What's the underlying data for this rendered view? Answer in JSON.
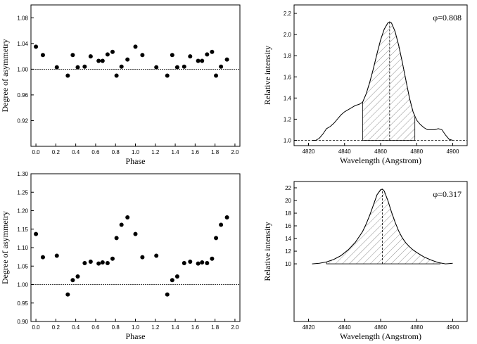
{
  "chart_data": [
    {
      "type": "scatter",
      "panel": "top-left",
      "xlabel": "Phase",
      "ylabel": "Degree of asymmetry",
      "xlim": [
        -0.05,
        2.05
      ],
      "ylim": [
        0.88,
        1.1
      ],
      "xticks": [
        "0.0",
        "0.2",
        "0.4",
        "0.6",
        "0.8",
        "1.0",
        "1.2",
        "1.4",
        "1.6",
        "1.8",
        "2.0"
      ],
      "yticks": [
        "0.92",
        "0.96",
        "1.00",
        "1.04",
        "1.08"
      ],
      "reference_line": 1.0,
      "x": [
        0.0,
        0.07,
        0.21,
        0.32,
        0.37,
        0.42,
        0.49,
        0.55,
        0.63,
        0.67,
        0.72,
        0.77,
        0.81,
        0.86,
        0.92,
        1.0,
        1.07,
        1.21,
        1.32,
        1.37,
        1.42,
        1.49,
        1.55,
        1.63,
        1.67,
        1.72,
        1.77,
        1.81,
        1.86,
        1.92
      ],
      "y": [
        1.035,
        1.022,
        1.003,
        0.99,
        1.022,
        1.003,
        1.004,
        1.02,
        1.013,
        1.013,
        1.023,
        1.027,
        0.99,
        1.004,
        1.015,
        1.035,
        1.022,
        1.003,
        0.99,
        1.022,
        1.003,
        1.004,
        1.02,
        1.013,
        1.013,
        1.023,
        1.027,
        0.99,
        1.004,
        1.015
      ]
    },
    {
      "type": "line",
      "panel": "top-right",
      "xlabel": "Wavelength (Angstrom)",
      "ylabel": "Relative intensity",
      "annotation": "φ=0.808",
      "xlim": [
        4812,
        4908
      ],
      "ylim": [
        0.95,
        2.28
      ],
      "xticks": [
        "4820",
        "4840",
        "4860",
        "4880",
        "4900"
      ],
      "yticks": [
        "1.0",
        "1.2",
        "1.4",
        "1.6",
        "1.8",
        "2.0",
        "2.2"
      ],
      "reference_line": 1.0,
      "hatched_range": [
        4850,
        4879
      ],
      "center_line": 4865,
      "x": [
        4822,
        4824,
        4826,
        4828,
        4830,
        4832,
        4834,
        4836,
        4838,
        4840,
        4842,
        4844,
        4846,
        4848,
        4850,
        4852,
        4854,
        4856,
        4858,
        4860,
        4862,
        4864,
        4865,
        4866,
        4868,
        4870,
        4872,
        4874,
        4876,
        4878,
        4880,
        4882,
        4884,
        4886,
        4888,
        4890,
        4892,
        4894,
        4896,
        4898,
        4900
      ],
      "y": [
        1.0,
        1.0,
        1.02,
        1.06,
        1.11,
        1.13,
        1.16,
        1.2,
        1.24,
        1.27,
        1.29,
        1.31,
        1.33,
        1.34,
        1.36,
        1.44,
        1.55,
        1.68,
        1.82,
        1.95,
        2.05,
        2.11,
        2.12,
        2.11,
        2.03,
        1.9,
        1.74,
        1.57,
        1.4,
        1.27,
        1.19,
        1.15,
        1.12,
        1.1,
        1.1,
        1.1,
        1.11,
        1.1,
        1.05,
        1.01,
        1.0
      ]
    },
    {
      "type": "scatter",
      "panel": "bottom-left",
      "xlabel": "Phase",
      "ylabel": "Degree of asymmetry",
      "xlim": [
        -0.05,
        2.05
      ],
      "ylim": [
        0.9,
        1.3
      ],
      "xticks": [
        "0.0",
        "0.2",
        "0.4",
        "0.6",
        "0.8",
        "1.0",
        "1.2",
        "1.4",
        "1.6",
        "1.8",
        "2.0"
      ],
      "yticks": [
        "0.90",
        "0.95",
        "1.00",
        "1.05",
        "1.10",
        "1.15",
        "1.20",
        "1.25",
        "1.30"
      ],
      "reference_line": 1.0,
      "x": [
        0.0,
        0.07,
        0.21,
        0.32,
        0.37,
        0.42,
        0.49,
        0.55,
        0.63,
        0.67,
        0.72,
        0.77,
        0.81,
        0.86,
        0.92,
        1.0,
        1.07,
        1.21,
        1.32,
        1.37,
        1.42,
        1.49,
        1.55,
        1.63,
        1.67,
        1.72,
        1.77,
        1.81,
        1.86,
        1.92
      ],
      "y": [
        1.137,
        1.074,
        1.078,
        0.973,
        1.012,
        1.022,
        1.058,
        1.062,
        1.057,
        1.06,
        1.058,
        1.07,
        1.126,
        1.162,
        1.182,
        1.137,
        1.074,
        1.078,
        0.973,
        1.012,
        1.022,
        1.058,
        1.062,
        1.057,
        1.06,
        1.058,
        1.07,
        1.126,
        1.162,
        1.182
      ]
    },
    {
      "type": "line",
      "panel": "bottom-right",
      "xlabel": "Wavelength (Angstrom)",
      "ylabel": "Relative intensity",
      "annotation": "φ=0.317",
      "xlim": [
        4812,
        4908
      ],
      "ylim": [
        0.9,
        23.0
      ],
      "xticks": [
        "4820",
        "4840",
        "4860",
        "4880",
        "4900"
      ],
      "yticks": [
        "10",
        "12",
        "14",
        "16",
        "18",
        "20",
        "22"
      ],
      "hatched_range": [
        4830,
        4893
      ],
      "center_line": 4861,
      "x": [
        4822,
        4826,
        4830,
        4834,
        4838,
        4842,
        4846,
        4850,
        4852,
        4854,
        4856,
        4858,
        4860,
        4861,
        4862,
        4864,
        4866,
        4868,
        4870,
        4872,
        4874,
        4876,
        4878,
        4880,
        4884,
        4888,
        4892,
        4896,
        4900
      ],
      "y": [
        10.0,
        10.1,
        10.3,
        10.7,
        11.3,
        12.2,
        13.4,
        15.1,
        16.3,
        17.7,
        19.3,
        20.9,
        21.7,
        21.8,
        21.5,
        20.0,
        18.2,
        16.6,
        15.2,
        14.1,
        13.3,
        12.7,
        12.2,
        11.8,
        11.1,
        10.6,
        10.2,
        10.0,
        10.1
      ]
    }
  ]
}
